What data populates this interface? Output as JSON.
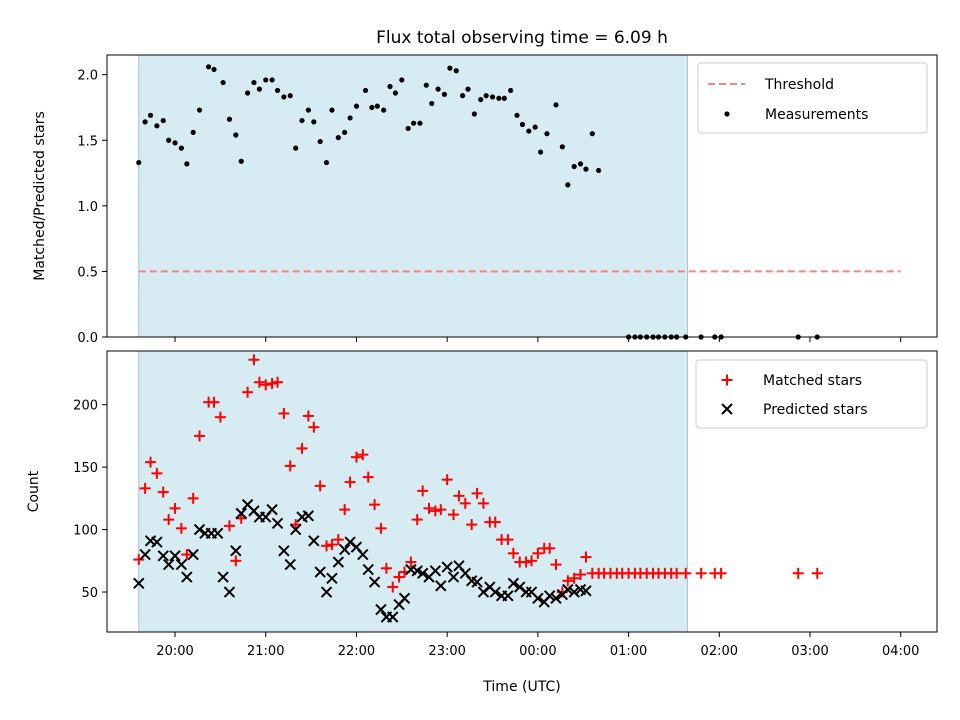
{
  "chart_data": [
    {
      "type": "scatter",
      "title": "Flux total observing time = 6.09 h",
      "xlabel": "",
      "ylabel": "Matched/Predicted stars",
      "ylim": [
        0,
        2.15
      ],
      "yticks": [
        0.0,
        0.5,
        1.0,
        1.5,
        2.0
      ],
      "ytick_labels": [
        "0.0",
        "0.5",
        "1.0",
        "1.5",
        "2.0"
      ],
      "xlim_hours": [
        19.25,
        28.4
      ],
      "xticks": [
        20,
        21,
        22,
        23,
        24,
        25,
        26,
        27,
        28
      ],
      "shaded_region": {
        "x": [
          19.6,
          25.65
        ],
        "color": "#add8e6"
      },
      "legend_position": "top-right",
      "threshold": {
        "name": "Threshold",
        "value": 0.5,
        "x": [
          19.6,
          28.0
        ],
        "color": "#ff7f7f"
      },
      "measurements": {
        "name": "Measurements",
        "color": "#000000",
        "points": [
          [
            19.6,
            1.33
          ],
          [
            19.67,
            1.64
          ],
          [
            19.73,
            1.69
          ],
          [
            19.8,
            1.61
          ],
          [
            19.87,
            1.65
          ],
          [
            19.93,
            1.5
          ],
          [
            20.0,
            1.48
          ],
          [
            20.07,
            1.44
          ],
          [
            20.13,
            1.32
          ],
          [
            20.2,
            1.56
          ],
          [
            20.27,
            1.73
          ],
          [
            20.37,
            2.06
          ],
          [
            20.43,
            2.04
          ],
          [
            20.53,
            1.94
          ],
          [
            20.6,
            1.66
          ],
          [
            20.67,
            1.54
          ],
          [
            20.73,
            1.34
          ],
          [
            20.8,
            1.86
          ],
          [
            20.87,
            1.94
          ],
          [
            20.93,
            1.89
          ],
          [
            21.0,
            1.96
          ],
          [
            21.07,
            1.96
          ],
          [
            21.13,
            1.88
          ],
          [
            21.2,
            1.83
          ],
          [
            21.27,
            1.84
          ],
          [
            21.33,
            1.44
          ],
          [
            21.4,
            1.65
          ],
          [
            21.47,
            1.73
          ],
          [
            21.53,
            1.64
          ],
          [
            21.6,
            1.49
          ],
          [
            21.67,
            1.33
          ],
          [
            21.73,
            1.73
          ],
          [
            21.8,
            1.52
          ],
          [
            21.87,
            1.56
          ],
          [
            21.93,
            1.67
          ],
          [
            22.0,
            1.76
          ],
          [
            22.1,
            1.88
          ],
          [
            22.17,
            1.75
          ],
          [
            22.23,
            1.76
          ],
          [
            22.3,
            1.73
          ],
          [
            22.37,
            1.91
          ],
          [
            22.43,
            1.86
          ],
          [
            22.5,
            1.96
          ],
          [
            22.57,
            1.59
          ],
          [
            22.63,
            1.63
          ],
          [
            22.7,
            1.63
          ],
          [
            22.77,
            1.92
          ],
          [
            22.83,
            1.78
          ],
          [
            22.9,
            1.89
          ],
          [
            22.97,
            1.85
          ],
          [
            23.03,
            2.05
          ],
          [
            23.1,
            2.03
          ],
          [
            23.17,
            1.84
          ],
          [
            23.23,
            1.89
          ],
          [
            23.3,
            1.7
          ],
          [
            23.37,
            1.81
          ],
          [
            23.43,
            1.84
          ],
          [
            23.5,
            1.83
          ],
          [
            23.57,
            1.82
          ],
          [
            23.63,
            1.82
          ],
          [
            23.7,
            1.88
          ],
          [
            23.77,
            1.69
          ],
          [
            23.83,
            1.62
          ],
          [
            23.9,
            1.57
          ],
          [
            23.97,
            1.6
          ],
          [
            24.03,
            1.41
          ],
          [
            24.1,
            1.55
          ],
          [
            24.2,
            1.77
          ],
          [
            24.27,
            1.45
          ],
          [
            24.33,
            1.16
          ],
          [
            24.4,
            1.3
          ],
          [
            24.47,
            1.32
          ],
          [
            24.53,
            1.28
          ],
          [
            24.6,
            1.55
          ],
          [
            24.67,
            1.27
          ],
          [
            25.0,
            0.0
          ],
          [
            25.07,
            0.0
          ],
          [
            25.13,
            0.0
          ],
          [
            25.2,
            0.0
          ],
          [
            25.27,
            0.0
          ],
          [
            25.33,
            0.0
          ],
          [
            25.4,
            0.0
          ],
          [
            25.47,
            0.0
          ],
          [
            25.53,
            0.0
          ],
          [
            25.63,
            0.0
          ],
          [
            25.8,
            0.0
          ],
          [
            25.95,
            0.0
          ],
          [
            26.02,
            0.0
          ],
          [
            26.87,
            0.0
          ],
          [
            27.08,
            0.0
          ]
        ]
      }
    },
    {
      "type": "scatter",
      "title": "",
      "xlabel": "Time (UTC)",
      "ylabel": "Count",
      "ylim": [
        18,
        243
      ],
      "yticks": [
        50,
        100,
        150,
        200
      ],
      "ytick_labels": [
        "50",
        "100",
        "150",
        "200"
      ],
      "xlim_hours": [
        19.25,
        28.4
      ],
      "xticks": [
        20,
        21,
        22,
        23,
        24,
        25,
        26,
        27,
        28
      ],
      "xtick_labels": [
        "20:00",
        "21:00",
        "22:00",
        "23:00",
        "00:00",
        "01:00",
        "02:00",
        "03:00",
        "04:00"
      ],
      "shaded_region": {
        "x": [
          19.6,
          25.65
        ],
        "color": "#add8e6"
      },
      "legend_position": "top-right",
      "series": [
        {
          "name": "Matched stars",
          "marker": "plus",
          "color": "#ff0000",
          "points": [
            [
              19.6,
              76
            ],
            [
              19.67,
              133
            ],
            [
              19.73,
              154
            ],
            [
              19.8,
              145
            ],
            [
              19.87,
              130
            ],
            [
              19.93,
              108
            ],
            [
              20.0,
              117
            ],
            [
              20.07,
              101
            ],
            [
              20.13,
              80
            ],
            [
              20.2,
              125
            ],
            [
              20.27,
              175
            ],
            [
              20.37,
              202
            ],
            [
              20.43,
              202
            ],
            [
              20.5,
              190
            ],
            [
              20.6,
              103
            ],
            [
              20.67,
              75
            ],
            [
              20.73,
              109
            ],
            [
              20.8,
              210
            ],
            [
              20.87,
              236
            ],
            [
              20.93,
              218
            ],
            [
              21.0,
              216
            ],
            [
              21.07,
              217
            ],
            [
              21.13,
              218
            ],
            [
              21.2,
              193
            ],
            [
              21.27,
              151
            ],
            [
              21.33,
              104
            ],
            [
              21.4,
              165
            ],
            [
              21.47,
              191
            ],
            [
              21.53,
              182
            ],
            [
              21.6,
              135
            ],
            [
              21.67,
              87
            ],
            [
              21.73,
              88
            ],
            [
              21.8,
              92
            ],
            [
              21.87,
              116
            ],
            [
              21.93,
              138
            ],
            [
              22.0,
              158
            ],
            [
              22.07,
              160
            ],
            [
              22.13,
              142
            ],
            [
              22.2,
              120
            ],
            [
              22.27,
              101
            ],
            [
              22.33,
              69
            ],
            [
              22.4,
              54
            ],
            [
              22.47,
              62
            ],
            [
              22.53,
              66
            ],
            [
              22.6,
              74
            ],
            [
              22.67,
              108
            ],
            [
              22.73,
              131
            ],
            [
              22.8,
              117
            ],
            [
              22.87,
              115
            ],
            [
              22.93,
              116
            ],
            [
              23.0,
              140
            ],
            [
              23.07,
              112
            ],
            [
              23.13,
              127
            ],
            [
              23.2,
              121
            ],
            [
              23.27,
              104
            ],
            [
              23.33,
              129
            ],
            [
              23.4,
              121
            ],
            [
              23.47,
              106
            ],
            [
              23.53,
              106
            ],
            [
              23.6,
              92
            ],
            [
              23.67,
              92
            ],
            [
              23.73,
              81
            ],
            [
              23.8,
              74
            ],
            [
              23.87,
              74
            ],
            [
              23.93,
              75
            ],
            [
              24.0,
              81
            ],
            [
              24.07,
              85
            ],
            [
              24.13,
              85
            ],
            [
              24.2,
              72
            ],
            [
              24.27,
              50
            ],
            [
              24.33,
              59
            ],
            [
              24.4,
              61
            ],
            [
              24.47,
              64
            ],
            [
              24.53,
              78
            ],
            [
              24.6,
              65
            ],
            [
              24.67,
              65
            ],
            [
              24.73,
              65
            ],
            [
              24.8,
              65
            ],
            [
              24.87,
              65
            ],
            [
              24.93,
              65
            ],
            [
              25.0,
              65
            ],
            [
              25.07,
              65
            ],
            [
              25.13,
              65
            ],
            [
              25.2,
              65
            ],
            [
              25.27,
              65
            ],
            [
              25.33,
              65
            ],
            [
              25.4,
              65
            ],
            [
              25.47,
              65
            ],
            [
              25.53,
              65
            ],
            [
              25.63,
              65
            ],
            [
              25.8,
              65
            ],
            [
              25.95,
              65
            ],
            [
              26.02,
              65
            ],
            [
              26.87,
              65
            ],
            [
              27.08,
              65
            ]
          ]
        },
        {
          "name": "Predicted stars",
          "marker": "x",
          "color": "#000000",
          "points": [
            [
              19.6,
              57
            ],
            [
              19.67,
              80
            ],
            [
              19.73,
              91
            ],
            [
              19.8,
              90
            ],
            [
              19.87,
              79
            ],
            [
              19.93,
              72
            ],
            [
              20.0,
              79
            ],
            [
              20.07,
              72
            ],
            [
              20.13,
              62
            ],
            [
              20.2,
              80
            ],
            [
              20.27,
              100
            ],
            [
              20.33,
              97
            ],
            [
              20.4,
              97
            ],
            [
              20.47,
              97
            ],
            [
              20.53,
              62
            ],
            [
              20.6,
              50
            ],
            [
              20.67,
              83
            ],
            [
              20.73,
              113
            ],
            [
              20.8,
              120
            ],
            [
              20.87,
              115
            ],
            [
              20.93,
              110
            ],
            [
              21.0,
              110
            ],
            [
              21.07,
              116
            ],
            [
              21.13,
              105
            ],
            [
              21.2,
              83
            ],
            [
              21.27,
              72
            ],
            [
              21.33,
              100
            ],
            [
              21.4,
              110
            ],
            [
              21.47,
              111
            ],
            [
              21.53,
              91
            ],
            [
              21.6,
              66
            ],
            [
              21.67,
              50
            ],
            [
              21.73,
              61
            ],
            [
              21.8,
              74
            ],
            [
              21.87,
              84
            ],
            [
              21.93,
              90
            ],
            [
              22.0,
              86
            ],
            [
              22.07,
              80
            ],
            [
              22.13,
              68
            ],
            [
              22.2,
              58
            ],
            [
              22.27,
              36
            ],
            [
              22.33,
              30
            ],
            [
              22.4,
              30
            ],
            [
              22.47,
              40
            ],
            [
              22.53,
              45
            ],
            [
              22.6,
              68
            ],
            [
              22.67,
              67
            ],
            [
              22.73,
              65
            ],
            [
              22.8,
              62
            ],
            [
              22.87,
              67
            ],
            [
              22.93,
              55
            ],
            [
              23.0,
              70
            ],
            [
              23.07,
              62
            ],
            [
              23.13,
              71
            ],
            [
              23.2,
              65
            ],
            [
              23.27,
              59
            ],
            [
              23.33,
              58
            ],
            [
              23.4,
              50
            ],
            [
              23.47,
              54
            ],
            [
              23.53,
              50
            ],
            [
              23.6,
              47
            ],
            [
              23.67,
              47
            ],
            [
              23.73,
              57
            ],
            [
              23.8,
              54
            ],
            [
              23.87,
              50
            ],
            [
              23.93,
              50
            ],
            [
              24.0,
              45
            ],
            [
              24.07,
              42
            ],
            [
              24.13,
              47
            ],
            [
              24.2,
              45
            ],
            [
              24.27,
              48
            ],
            [
              24.33,
              52
            ],
            [
              24.4,
              50
            ],
            [
              24.47,
              52
            ],
            [
              24.53,
              51
            ]
          ]
        }
      ]
    }
  ]
}
